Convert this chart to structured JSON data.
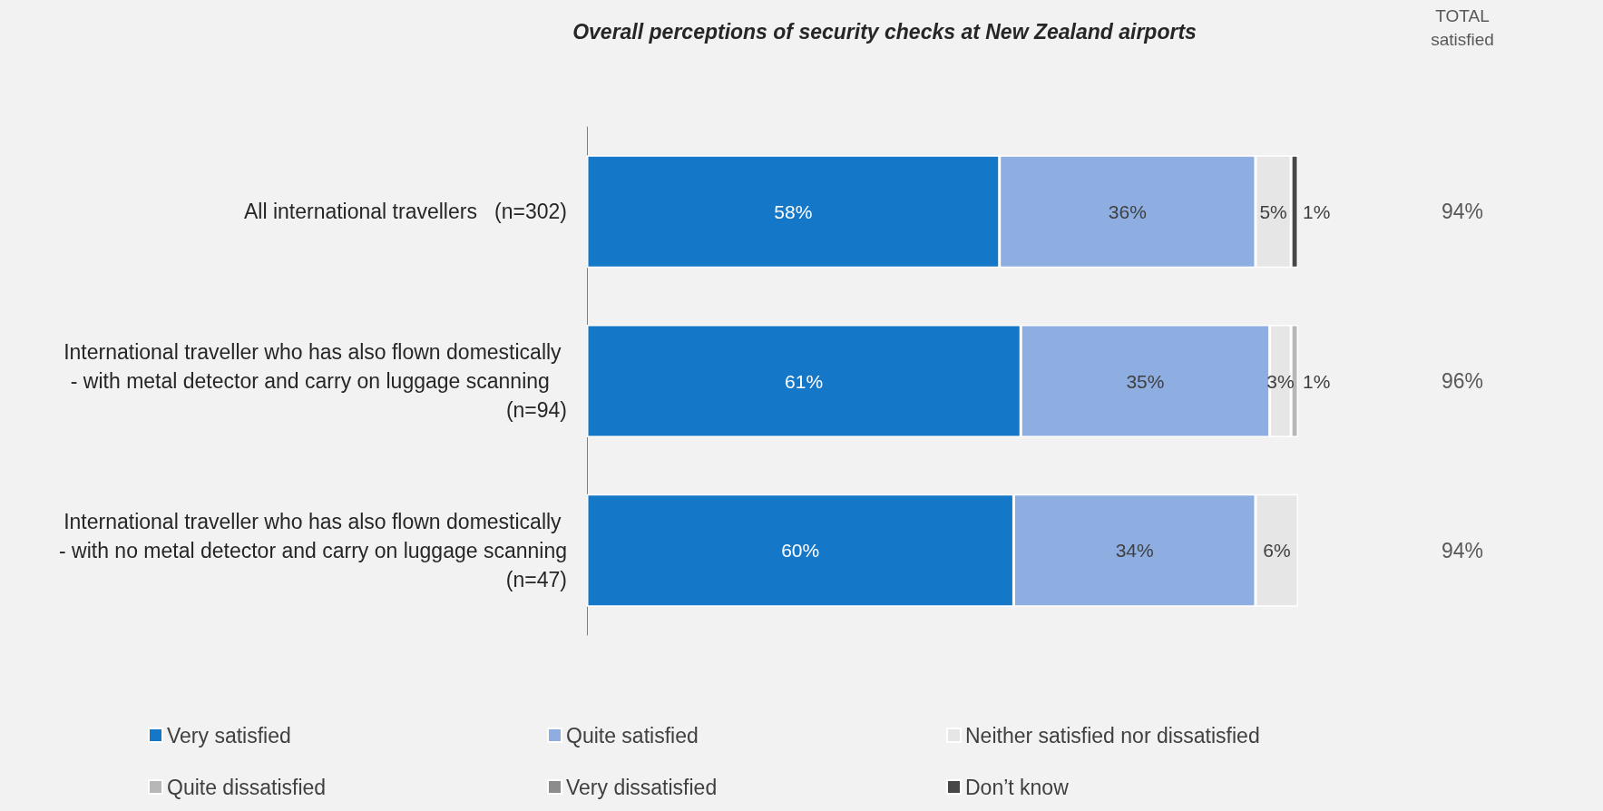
{
  "chart_data": {
    "type": "bar",
    "orientation": "horizontal",
    "stacked": true,
    "legend": "bottom",
    "title": "Overall perceptions of security checks at New Zealand airports",
    "categories": [
      "All international travellers   (n=302)",
      "International traveller who has also flown domestically - with metal detector and carry on luggage scanning   (n=94)",
      "International traveller who has also flown domestically - with no metal detector and carry on luggage scanning   (n=47)"
    ],
    "series": [
      {
        "name": "Very satisfied",
        "color": "#1577c8",
        "values": [
          58,
          61,
          60
        ],
        "value_labels": [
          "58%",
          "61%",
          "60%"
        ]
      },
      {
        "name": "Quite satisfied",
        "color": "#8eaee2",
        "values": [
          36,
          35,
          34
        ],
        "value_labels": [
          "36%",
          "35%",
          "34%"
        ]
      },
      {
        "name": "Neither satisfied nor dissatisfied",
        "color": "#e6e6e6",
        "values": [
          5,
          3,
          6
        ],
        "value_labels": [
          "5%",
          "3%",
          "6%"
        ]
      },
      {
        "name": "Quite dissatisfied",
        "color": "#b7b7b7",
        "values": [
          null,
          1,
          null
        ],
        "value_labels": [
          null,
          "1%",
          null
        ]
      },
      {
        "name": "Very dissatisfied",
        "color": "#8c8c8c",
        "values": [
          null,
          null,
          null
        ],
        "value_labels": [
          null,
          null,
          null
        ]
      },
      {
        "name": "Don’t know",
        "color": "#474747",
        "values": [
          1,
          null,
          null
        ],
        "value_labels": [
          "1%",
          null,
          null
        ]
      }
    ],
    "annotations": [
      "TOTAL\nsatisfied",
      "94%",
      "96%",
      "94%"
    ]
  }
}
